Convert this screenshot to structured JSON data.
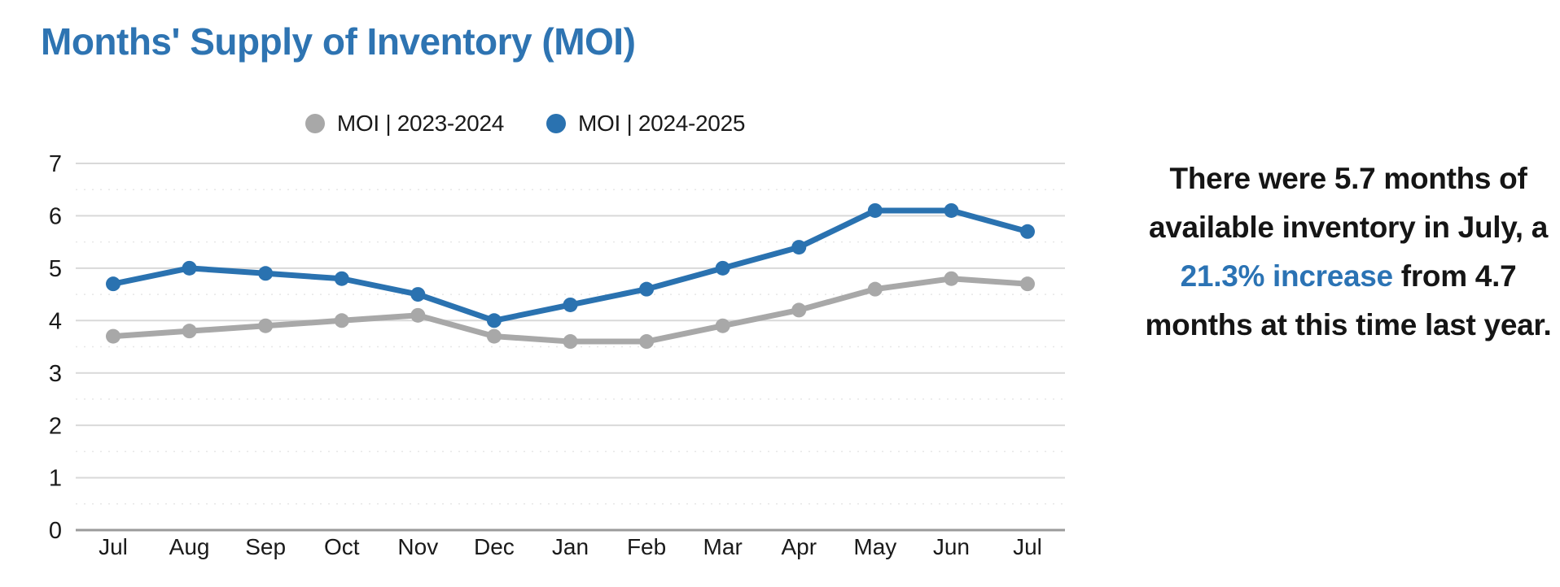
{
  "page": {
    "title": "Months' Supply of Inventory (MOI)"
  },
  "chart_data": {
    "type": "line",
    "title": "Months' Supply of Inventory (MOI)",
    "categories": [
      "Jul",
      "Aug",
      "Sep",
      "Oct",
      "Nov",
      "Dec",
      "Jan",
      "Feb",
      "Mar",
      "Apr",
      "May",
      "Jun",
      "Jul"
    ],
    "series": [
      {
        "name": "MOI | 2023-2024",
        "color": "#a8a8a8",
        "values": [
          3.7,
          3.8,
          3.9,
          4.0,
          4.1,
          3.7,
          3.6,
          3.6,
          3.9,
          4.2,
          4.6,
          4.8,
          4.7
        ]
      },
      {
        "name": "MOI | 2024-2025",
        "color": "#2a72b0",
        "values": [
          4.7,
          5.0,
          4.9,
          4.8,
          4.5,
          4.0,
          4.3,
          4.6,
          5.0,
          5.4,
          6.1,
          6.1,
          5.7
        ]
      }
    ],
    "xlabel": "",
    "ylabel": "",
    "ylim": [
      0,
      7
    ],
    "y_ticks": [
      0,
      1,
      2,
      3,
      4,
      5,
      6,
      7
    ],
    "grid": "horizontal major lines with faint dotted half-step minor lines",
    "legend_position": "top-center"
  },
  "insight": {
    "before": "There were 5.7 months of available inventory in July, a ",
    "highlight": "21.3% increase",
    "after": " from 4.7 months at this time last year."
  },
  "colors": {
    "title_blue": "#2e74b2",
    "accent_blue": "#2b73b4",
    "series_gray": "#a8a8a8",
    "series_blue": "#2a72b0",
    "grid_major": "#d9d9d9",
    "grid_minor": "#e7e7e7",
    "axis_base": "#9b9b9b",
    "text_black": "#1a1a1a"
  }
}
